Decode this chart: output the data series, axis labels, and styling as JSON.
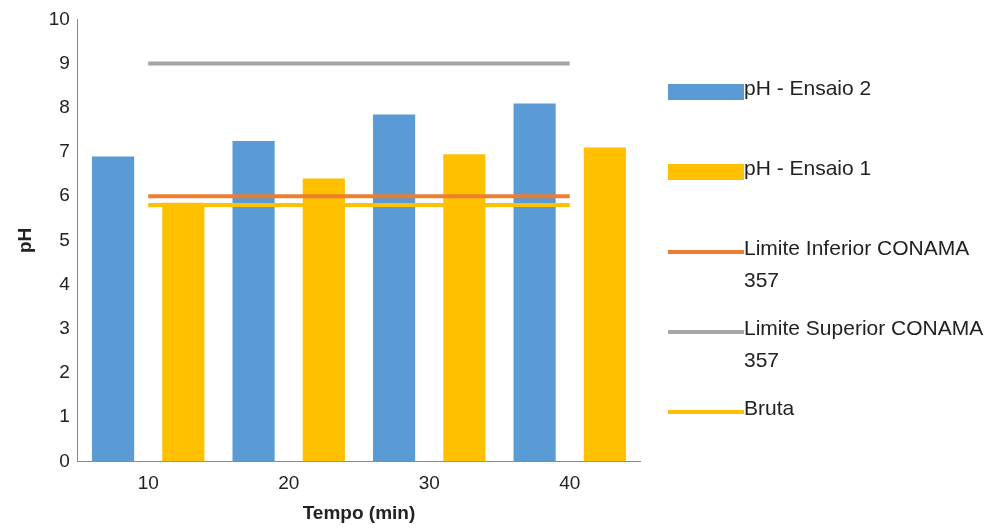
{
  "chart_data": {
    "type": "bar",
    "xlabel": "Tempo (min)",
    "ylabel": "pH",
    "categories": [
      "10",
      "20",
      "30",
      "40"
    ],
    "series": [
      {
        "name": "pH - Ensaio 2",
        "color": "#5b9bd5",
        "values": [
          6.9,
          7.25,
          7.85,
          8.1
        ]
      },
      {
        "name": "pH - Ensaio 1",
        "color": "#ffc000",
        "values": [
          5.85,
          6.4,
          6.95,
          7.1
        ]
      },
      {
        "name": "Limite Inferior CONAMA 357",
        "type": "line",
        "color": "#ed7d31",
        "values": [
          6,
          6,
          6,
          6
        ]
      },
      {
        "name": "Limite Superior CONAMA 357",
        "type": "line",
        "color": "#a5a5a5",
        "values": [
          9,
          9,
          9,
          9
        ]
      },
      {
        "name": "Bruta",
        "type": "line",
        "color": "#ffc000",
        "values": [
          5.8,
          5.8,
          5.8,
          5.8
        ]
      }
    ],
    "ylim": [
      0,
      10
    ],
    "yticks": [
      0,
      1,
      2,
      3,
      4,
      5,
      6,
      7,
      8,
      9,
      10
    ],
    "grid": false,
    "legend": "right",
    "marker": "none",
    "line_style": "solid"
  }
}
